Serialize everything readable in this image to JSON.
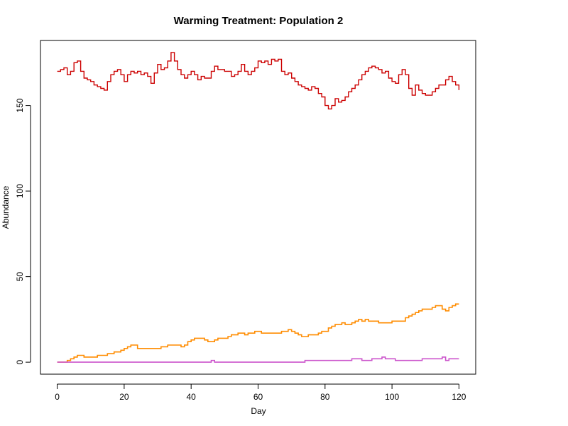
{
  "chart_data": {
    "type": "line",
    "title": "Warming Treatment: Population 2",
    "xlabel": "Day",
    "ylabel": "Abundance",
    "xlim": [
      -5,
      125
    ],
    "ylim": [
      -7,
      188
    ],
    "x_ticks": [
      0,
      20,
      40,
      60,
      80,
      100,
      120
    ],
    "y_ticks": [
      0,
      50,
      100,
      150
    ],
    "grid": false,
    "legend": "none",
    "series": [
      {
        "color": "#cc0000",
        "x": [
          0,
          1,
          2,
          3,
          4,
          5,
          6,
          7,
          8,
          9,
          10,
          11,
          12,
          13,
          14,
          15,
          16,
          17,
          18,
          19,
          20,
          21,
          22,
          23,
          24,
          25,
          26,
          27,
          28,
          29,
          30,
          31,
          32,
          33,
          34,
          35,
          36,
          37,
          38,
          39,
          40,
          41,
          42,
          43,
          44,
          45,
          46,
          47,
          48,
          49,
          50,
          51,
          52,
          53,
          54,
          55,
          56,
          57,
          58,
          59,
          60,
          61,
          62,
          63,
          64,
          65,
          66,
          67,
          68,
          69,
          70,
          71,
          72,
          73,
          74,
          75,
          76,
          77,
          78,
          79,
          80,
          81,
          82,
          83,
          84,
          85,
          86,
          87,
          88,
          89,
          90,
          91,
          92,
          93,
          94,
          95,
          96,
          97,
          98,
          99,
          100,
          101,
          102,
          103,
          104,
          105,
          106,
          107,
          108,
          109,
          110,
          111,
          112,
          113,
          114,
          115,
          116,
          117,
          118,
          119,
          120
        ],
        "y": [
          170,
          171,
          172,
          168,
          170,
          175,
          176,
          170,
          166,
          165,
          164,
          162,
          161,
          160,
          159,
          164,
          168,
          170,
          171,
          168,
          164,
          168,
          170,
          169,
          170,
          168,
          169,
          167,
          163,
          169,
          174,
          171,
          172,
          176,
          181,
          176,
          171,
          168,
          166,
          168,
          170,
          168,
          165,
          167,
          166,
          166,
          170,
          173,
          171,
          171,
          170,
          170,
          167,
          168,
          170,
          174,
          170,
          168,
          170,
          172,
          176,
          175,
          176,
          174,
          177,
          176,
          177,
          170,
          168,
          169,
          166,
          164,
          162,
          161,
          160,
          159,
          161,
          160,
          157,
          155,
          150,
          148,
          150,
          154,
          152,
          153,
          155,
          158,
          160,
          162,
          165,
          168,
          170,
          172,
          173,
          172,
          171,
          169,
          170,
          166,
          164,
          163,
          168,
          171,
          168,
          160,
          156,
          162,
          159,
          157,
          156,
          156,
          158,
          160,
          162,
          162,
          165,
          167,
          164,
          162,
          159
        ]
      },
      {
        "color": "#ff8c00",
        "x": [
          0,
          1,
          2,
          3,
          4,
          5,
          6,
          7,
          8,
          9,
          10,
          11,
          12,
          13,
          14,
          15,
          16,
          17,
          18,
          19,
          20,
          21,
          22,
          23,
          24,
          25,
          26,
          27,
          28,
          29,
          30,
          31,
          32,
          33,
          34,
          35,
          36,
          37,
          38,
          39,
          40,
          41,
          42,
          43,
          44,
          45,
          46,
          47,
          48,
          49,
          50,
          51,
          52,
          53,
          54,
          55,
          56,
          57,
          58,
          59,
          60,
          61,
          62,
          63,
          64,
          65,
          66,
          67,
          68,
          69,
          70,
          71,
          72,
          73,
          74,
          75,
          76,
          77,
          78,
          79,
          80,
          81,
          82,
          83,
          84,
          85,
          86,
          87,
          88,
          89,
          90,
          91,
          92,
          93,
          94,
          95,
          96,
          97,
          98,
          99,
          100,
          101,
          102,
          103,
          104,
          105,
          106,
          107,
          108,
          109,
          110,
          111,
          112,
          113,
          114,
          115,
          116,
          117,
          118,
          119,
          120
        ],
        "y": [
          0,
          0,
          0,
          1,
          2,
          3,
          4,
          4,
          3,
          3,
          3,
          3,
          4,
          4,
          4,
          5,
          5,
          6,
          6,
          7,
          8,
          9,
          10,
          10,
          8,
          8,
          8,
          8,
          8,
          8,
          8,
          9,
          9,
          10,
          10,
          10,
          10,
          9,
          10,
          12,
          13,
          14,
          14,
          14,
          13,
          12,
          12,
          13,
          14,
          14,
          14,
          15,
          16,
          16,
          17,
          17,
          16,
          17,
          17,
          18,
          18,
          17,
          17,
          17,
          17,
          17,
          17,
          18,
          18,
          19,
          18,
          17,
          16,
          15,
          15,
          16,
          16,
          16,
          17,
          18,
          18,
          20,
          21,
          22,
          22,
          23,
          22,
          22,
          23,
          24,
          25,
          24,
          25,
          24,
          24,
          24,
          23,
          23,
          23,
          23,
          24,
          24,
          24,
          24,
          26,
          27,
          28,
          29,
          30,
          31,
          31,
          31,
          32,
          33,
          33,
          31,
          30,
          32,
          33,
          34,
          34
        ]
      },
      {
        "color": "#cc55cc",
        "x": [
          0,
          3,
          45,
          46,
          47,
          73,
          74,
          75,
          87,
          88,
          90,
          91,
          93,
          94,
          96,
          97,
          98,
          99,
          100,
          101,
          103,
          104,
          108,
          109,
          114,
          115,
          116,
          117,
          120
        ],
        "y": [
          0,
          0,
          0,
          1,
          0,
          0,
          1,
          1,
          1,
          2,
          2,
          1,
          1,
          2,
          2,
          3,
          2,
          2,
          2,
          1,
          1,
          1,
          1,
          2,
          2,
          3,
          1,
          2,
          2
        ]
      }
    ]
  }
}
